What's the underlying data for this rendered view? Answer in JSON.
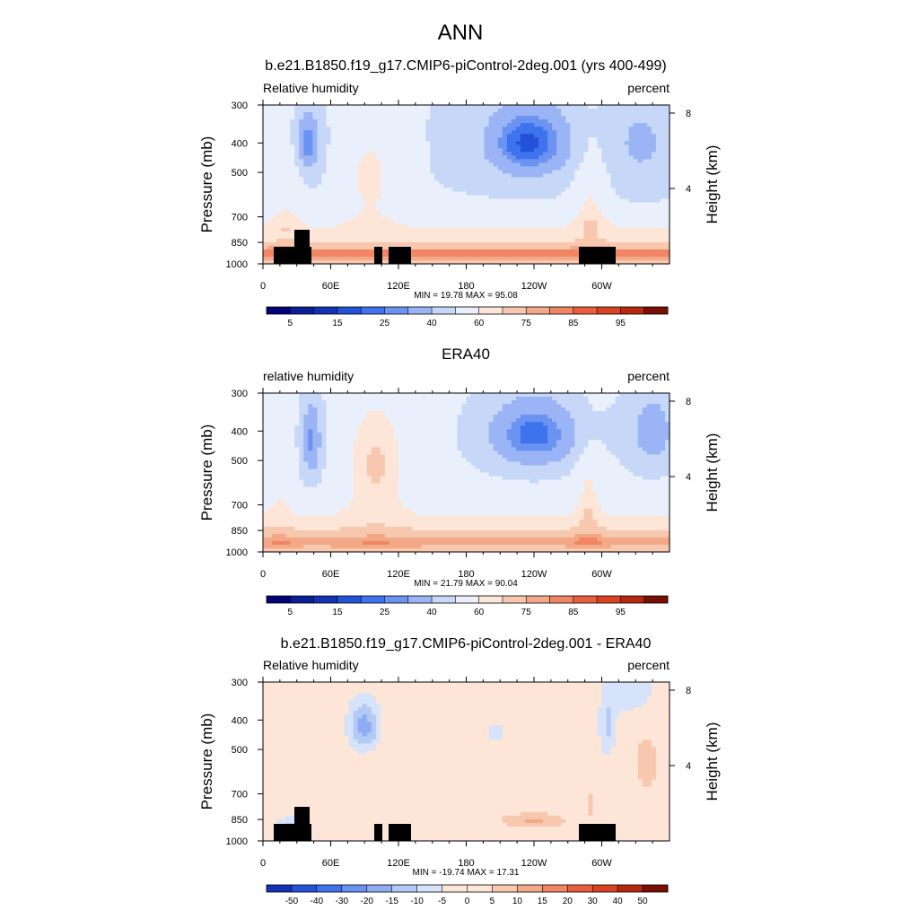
{
  "figure": {
    "title": "ANN"
  },
  "chart_data": [
    {
      "type": "heatmap",
      "title": "b.e21.B1850.f19_g17.CMIP6-piControl-2deg.001 (yrs 400-499)",
      "left_label": "Relative humidity",
      "right_label": "percent",
      "ylabel": "Pressure (mb)",
      "ylabel_right": "Height (km)",
      "x_ticks": [
        "0",
        "60E",
        "120E",
        "180",
        "120W",
        "60W"
      ],
      "x_tick_values": [
        0,
        60,
        120,
        180,
        240,
        300
      ],
      "xlim": [
        0,
        360
      ],
      "y_ticks": [
        "300",
        "400",
        "500",
        "700",
        "850",
        "1000"
      ],
      "y_tick_values": [
        300,
        400,
        500,
        700,
        850,
        1000
      ],
      "ylim": [
        1000,
        300
      ],
      "y_scale": "log",
      "y_right_ticks": [
        "8",
        "4"
      ],
      "y_right_tick_values": [
        8,
        4
      ],
      "stats": "MIN =  19.78  MAX =  95.08",
      "colorbar_labels": [
        "5",
        "15",
        "25",
        "40",
        "60",
        "75",
        "85",
        "95"
      ],
      "colorbar_label_steps": [
        1,
        3,
        5,
        7,
        9,
        11,
        13,
        15
      ],
      "levels": [
        5,
        10,
        15,
        20,
        25,
        30,
        40,
        50,
        60,
        65,
        75,
        80,
        85,
        90,
        95
      ],
      "colors": [
        "#000078",
        "#0a1e96",
        "#1432b4",
        "#2352d8",
        "#3f73ee",
        "#6b93f2",
        "#9ab4f5",
        "#c6d7f7",
        "#eaf0fb",
        "#fde6d7",
        "#f7c8af",
        "#f3a888",
        "#f08663",
        "#ea5f3b",
        "#d9431f",
        "#b6290c",
        "#7a0e03"
      ],
      "topography": true,
      "fields": "model"
    },
    {
      "type": "heatmap",
      "title": "ERA40",
      "left_label": "relative humidity",
      "right_label": "percent",
      "ylabel": "Pressure (mb)",
      "ylabel_right": "Height (km)",
      "x_ticks": [
        "0",
        "60E",
        "120E",
        "180",
        "120W",
        "60W"
      ],
      "x_tick_values": [
        0,
        60,
        120,
        180,
        240,
        300
      ],
      "xlim": [
        0,
        360
      ],
      "y_ticks": [
        "300",
        "400",
        "500",
        "700",
        "850",
        "1000"
      ],
      "y_tick_values": [
        300,
        400,
        500,
        700,
        850,
        1000
      ],
      "ylim": [
        1000,
        300
      ],
      "y_scale": "log",
      "y_right_ticks": [
        "8",
        "4"
      ],
      "y_right_tick_values": [
        8,
        4
      ],
      "stats": "MIN =  21.79  MAX =  90.04",
      "colorbar_labels": [
        "5",
        "15",
        "25",
        "40",
        "60",
        "75",
        "85",
        "95"
      ],
      "colorbar_label_steps": [
        1,
        3,
        5,
        7,
        9,
        11,
        13,
        15
      ],
      "levels": [
        5,
        10,
        15,
        20,
        25,
        30,
        40,
        50,
        60,
        65,
        75,
        80,
        85,
        90,
        95
      ],
      "colors": [
        "#000078",
        "#0a1e96",
        "#1432b4",
        "#2352d8",
        "#3f73ee",
        "#6b93f2",
        "#9ab4f5",
        "#c6d7f7",
        "#eaf0fb",
        "#fde6d7",
        "#f7c8af",
        "#f3a888",
        "#f08663",
        "#ea5f3b",
        "#d9431f",
        "#b6290c",
        "#7a0e03"
      ],
      "topography": false,
      "fields": "obs"
    },
    {
      "type": "heatmap",
      "title": "b.e21.B1850.f19_g17.CMIP6-piControl-2deg.001 - ERA40",
      "left_label": "Relative humidity",
      "right_label": "percent",
      "ylabel": "Pressure (mb)",
      "ylabel_right": "Height (km)",
      "x_ticks": [
        "0",
        "60E",
        "120E",
        "180",
        "120W",
        "60W"
      ],
      "x_tick_values": [
        0,
        60,
        120,
        180,
        240,
        300
      ],
      "xlim": [
        0,
        360
      ],
      "y_ticks": [
        "300",
        "400",
        "500",
        "700",
        "850",
        "1000"
      ],
      "y_tick_values": [
        300,
        400,
        500,
        700,
        850,
        1000
      ],
      "ylim": [
        1000,
        300
      ],
      "y_scale": "log",
      "y_right_ticks": [
        "8",
        "4"
      ],
      "y_right_tick_values": [
        8,
        4
      ],
      "stats": "MIN = -19.74  MAX =  17.31",
      "colorbar_labels": [
        "-50",
        "-40",
        "-30",
        "-20",
        "-15",
        "-10",
        "-5",
        "0",
        "5",
        "10",
        "15",
        "20",
        "30",
        "40",
        "50"
      ],
      "colorbar_label_steps": [
        1,
        2,
        3,
        4,
        5,
        6,
        7,
        8,
        9,
        10,
        11,
        12,
        13,
        14,
        15
      ],
      "levels": [
        -50,
        -40,
        -30,
        -20,
        -15,
        -10,
        -5,
        0,
        5,
        10,
        15,
        20,
        30,
        40,
        50
      ],
      "colors": [
        "#1432b4",
        "#2352d8",
        "#3f73ee",
        "#6b93f2",
        "#8eabf4",
        "#b3c9f6",
        "#d6e3fa",
        "#fde6d7",
        "#fde6d7",
        "#f7c8af",
        "#f3a888",
        "#f08663",
        "#ea5f3b",
        "#d9431f",
        "#b6290c",
        "#7a0e03"
      ],
      "topography": true,
      "fields": "diff"
    }
  ]
}
